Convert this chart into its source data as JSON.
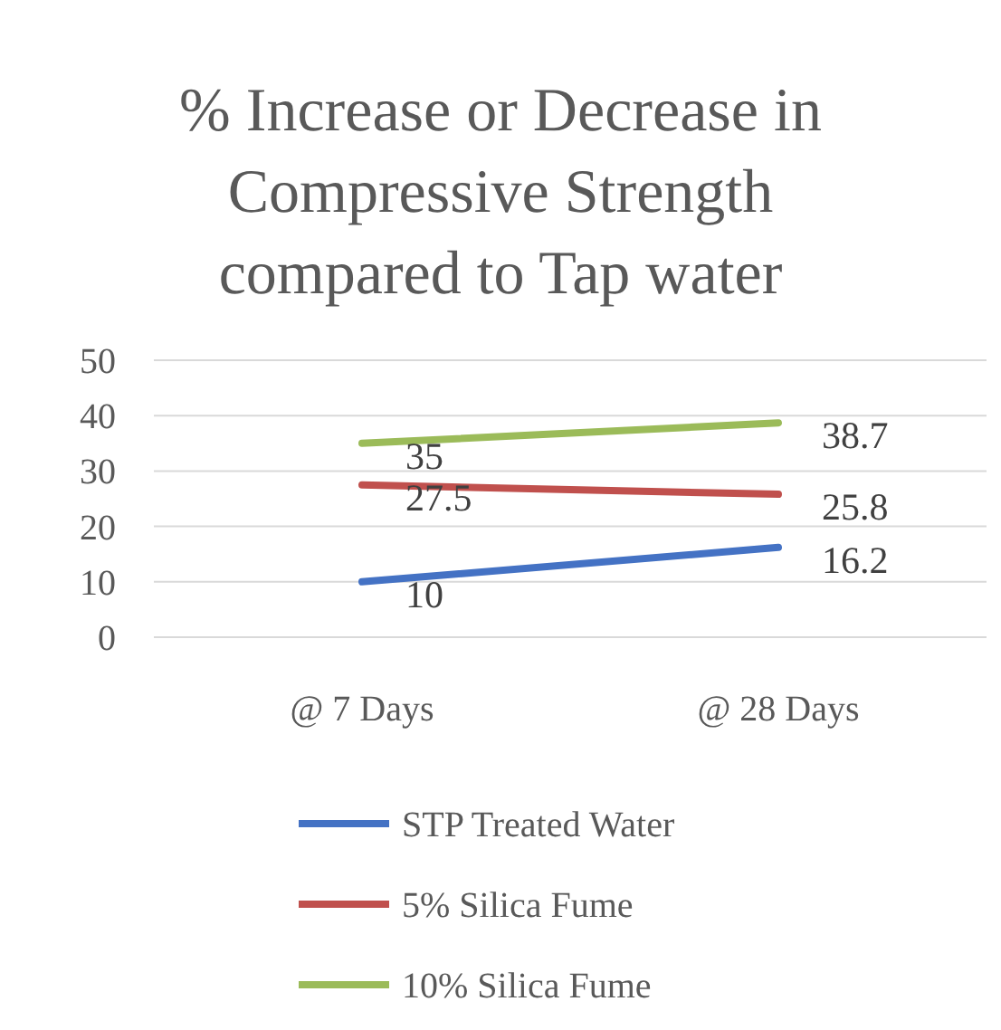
{
  "chart_data": {
    "type": "line",
    "title": "% Increase or Decrease in Compressive Strength compared to Tap water",
    "categories": [
      "@ 7 Days",
      "@ 28 Days"
    ],
    "series": [
      {
        "name": "STP Treated Water",
        "color": "#4472c4",
        "values": [
          10,
          16.2
        ]
      },
      {
        "name": "5% Silica Fume",
        "color": "#c0504d",
        "values": [
          27.5,
          25.8
        ]
      },
      {
        "name": "10% Silica Fume",
        "color": "#9bbb59",
        "values": [
          35,
          38.7
        ]
      }
    ],
    "ylim": [
      0,
      50
    ],
    "yticks": [
      0,
      10,
      20,
      30,
      40,
      50
    ],
    "grid": "y",
    "legend": "bottom",
    "data_labels": true,
    "marker": "none",
    "line_style": "solid"
  }
}
